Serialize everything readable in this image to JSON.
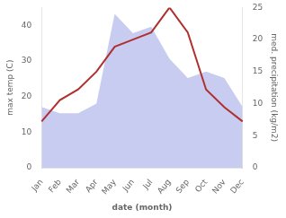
{
  "chart_data": {
    "type": "line",
    "categories": [
      "Jan",
      "Feb",
      "Mar",
      "Apr",
      "May",
      "Jun",
      "Jul",
      "Aug",
      "Sep",
      "Oct",
      "Nov",
      "Dec"
    ],
    "series": [
      {
        "type": "area",
        "color": "#c8ccf0",
        "axis": "y2",
        "values": [
          9.5,
          8.5,
          8.5,
          10,
          24,
          21,
          22,
          17,
          14,
          15,
          14,
          9.5
        ]
      },
      {
        "type": "line",
        "color": "#b03030",
        "values": [
          13,
          19,
          22,
          27,
          34,
          36,
          38,
          45,
          38,
          22,
          17,
          13
        ]
      }
    ],
    "xlabel": "date (month)",
    "ylabel": "max temp (C)",
    "y2label": "med. precipitation (kg/m2)",
    "ylim": [
      0,
      45
    ],
    "yticks": [
      0,
      10,
      20,
      30,
      40
    ],
    "y2lim": [
      0,
      25
    ],
    "y2ticks": [
      0,
      5,
      10,
      15,
      20,
      25
    ],
    "grid": false
  }
}
